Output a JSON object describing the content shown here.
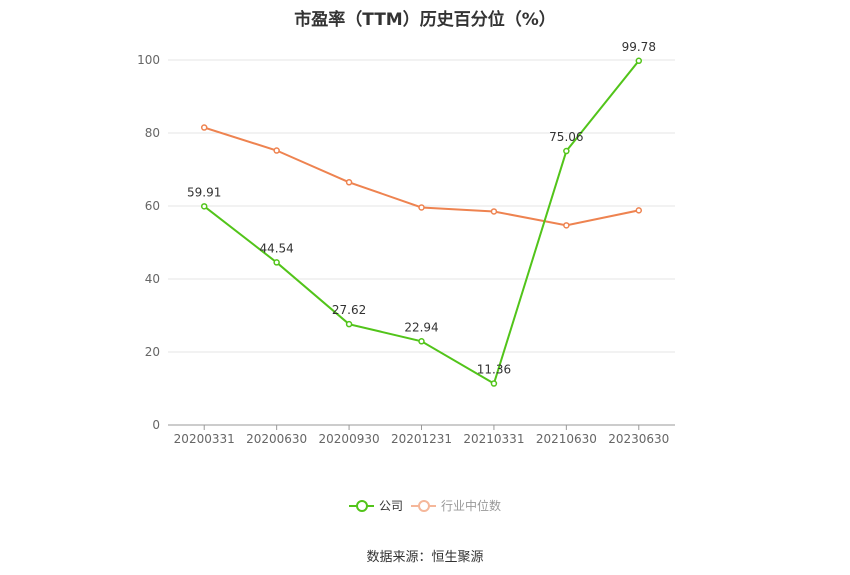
{
  "title": "市盈率（TTM）历史百分位（%）",
  "source": "数据来源：恒生聚源",
  "chart_data": {
    "type": "line",
    "categories": [
      "20200331",
      "20200630",
      "20200930",
      "20201231",
      "20210331",
      "20210630",
      "20230630"
    ],
    "ylim": [
      0,
      100
    ],
    "yticks": [
      0,
      20,
      40,
      60,
      80,
      100
    ],
    "grid": true,
    "legend_position": "bottom",
    "series": [
      {
        "name": "公司",
        "color": "#52c41a",
        "values": [
          59.91,
          44.54,
          27.62,
          22.94,
          11.36,
          75.06,
          99.78
        ],
        "labels": [
          "59.91",
          "44.54",
          "27.62",
          "22.94",
          "11.36",
          "75.06",
          "99.78"
        ]
      },
      {
        "name": "行业中位数",
        "color": "#ee8350",
        "values": [
          81.5,
          75.2,
          66.5,
          59.6,
          58.5,
          54.7,
          58.8
        ]
      }
    ]
  }
}
